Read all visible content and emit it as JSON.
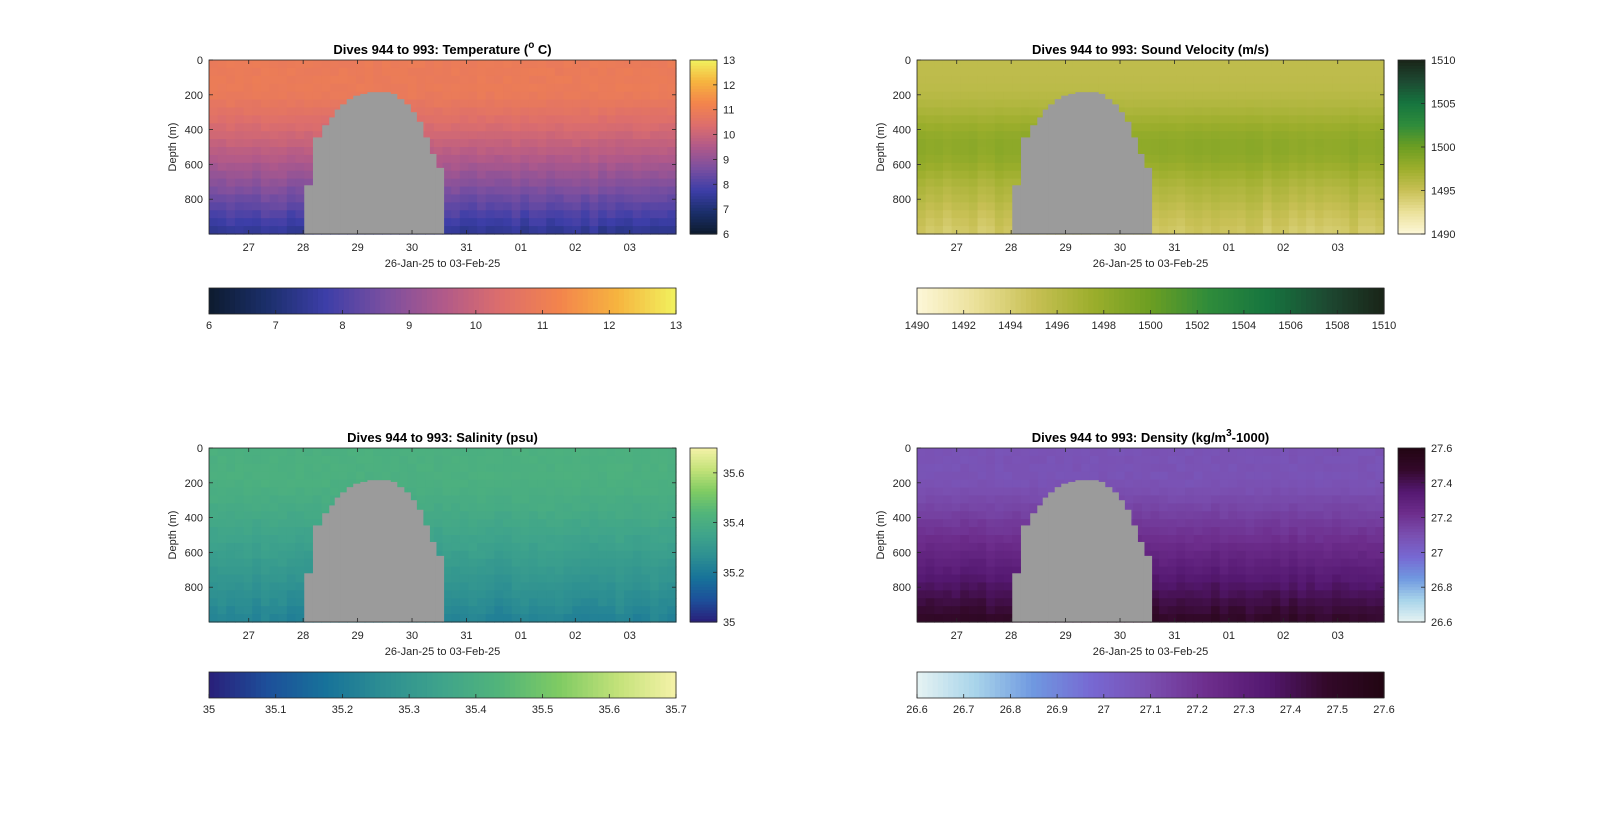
{
  "colors": {
    "mask": "#9b9b9b",
    "axis": "#262626",
    "temperature_map": [
      "#0d1b2e",
      "#1b2f6b",
      "#3d3ea8",
      "#7a4fa0",
      "#b0598a",
      "#dd6e6c",
      "#f3844c",
      "#f6b43f",
      "#f1f25e"
    ],
    "sound_velocity_map": [
      "#fdf7d8",
      "#ebe19a",
      "#c8c055",
      "#9cae2c",
      "#6c9e22",
      "#2f8c3b",
      "#16753f",
      "#1d4a32",
      "#1a2418"
    ],
    "salinity_map": [
      "#2a1f7a",
      "#1d4f9a",
      "#17729a",
      "#2d8f92",
      "#3fa48b",
      "#52b57a",
      "#7fcb63",
      "#c3e279",
      "#f5f2a8"
    ],
    "density_map": [
      "#e6f3f3",
      "#a8d4ea",
      "#6f98e0",
      "#7768d2",
      "#7a4fb0",
      "#6d2d8c",
      "#541870",
      "#33092a",
      "#220512"
    ]
  },
  "chart_data": [
    {
      "type": "heatmap",
      "id": "temperature",
      "title_prefix": "Dives 944 to 993: Temperature (",
      "title_sup": "o",
      "title_suffix": " C)",
      "xlabel": "26-Jan-25 to 03-Feb-25",
      "ylabel": "Depth (m)",
      "x_ticklabels": [
        "27",
        "28",
        "29",
        "30",
        "31",
        "01",
        "02",
        "03"
      ],
      "y_ticklabels": [
        "0",
        "200",
        "400",
        "600",
        "800"
      ],
      "y_ticks": [
        0,
        200,
        400,
        600,
        800
      ],
      "ylim": [
        0,
        1000
      ],
      "y_reversed": true,
      "colorbar_ticks": [
        "6",
        "7",
        "8",
        "9",
        "10",
        "11",
        "12",
        "13"
      ],
      "colorbar_range": [
        6,
        13
      ],
      "surface_value": 10.9,
      "deep_value": 7.4,
      "horizontal_colorbar_ticks": [
        "6",
        "7",
        "8",
        "9",
        "10",
        "11",
        "12",
        "13"
      ]
    },
    {
      "type": "heatmap",
      "id": "sound_velocity",
      "title_prefix": "Dives 944 to 993: Sound Velocity (m/s)",
      "title_sup": "",
      "title_suffix": "",
      "xlabel": "26-Jan-25 to 03-Feb-25",
      "ylabel": "Depth (m)",
      "x_ticklabels": [
        "27",
        "28",
        "29",
        "30",
        "31",
        "01",
        "02",
        "03"
      ],
      "y_ticklabels": [
        "0",
        "200",
        "400",
        "600",
        "800"
      ],
      "y_ticks": [
        0,
        200,
        400,
        600,
        800
      ],
      "ylim": [
        0,
        1000
      ],
      "y_reversed": true,
      "colorbar_ticks": [
        "1490",
        "1495",
        "1500",
        "1505",
        "1510"
      ],
      "colorbar_range": [
        1490,
        1510
      ],
      "surface_value": 1495.5,
      "deep_value": 1496.0,
      "horizontal_colorbar_ticks": [
        "1490",
        "1492",
        "1494",
        "1496",
        "1498",
        "1500",
        "1502",
        "1504",
        "1506",
        "1508",
        "1510"
      ]
    },
    {
      "type": "heatmap",
      "id": "salinity",
      "title_prefix": "Dives 944 to 993: Salinity (psu)",
      "title_sup": "",
      "title_suffix": "",
      "xlabel": "26-Jan-25 to 03-Feb-25",
      "ylabel": "Depth (m)",
      "x_ticklabels": [
        "27",
        "28",
        "29",
        "30",
        "31",
        "01",
        "02",
        "03"
      ],
      "y_ticklabels": [
        "0",
        "200",
        "400",
        "600",
        "800"
      ],
      "y_ticks": [
        0,
        200,
        400,
        600,
        800
      ],
      "ylim": [
        0,
        1000
      ],
      "y_reversed": true,
      "colorbar_ticks": [
        "35",
        "35.2",
        "35.4",
        "35.6"
      ],
      "colorbar_range": [
        35,
        35.7
      ],
      "surface_value": 35.41,
      "deep_value": 35.22,
      "horizontal_colorbar_ticks": [
        "35",
        "35.1",
        "35.2",
        "35.3",
        "35.4",
        "35.5",
        "35.6",
        "35.7"
      ]
    },
    {
      "type": "heatmap",
      "id": "density",
      "title_prefix": "Dives 944 to 993: Density (kg/m",
      "title_sup": "3",
      "title_suffix": "-1000)",
      "xlabel": "26-Jan-25 to 03-Feb-25",
      "ylabel": "Depth (m)",
      "x_ticklabels": [
        "27",
        "28",
        "29",
        "30",
        "31",
        "01",
        "02",
        "03"
      ],
      "y_ticklabels": [
        "0",
        "200",
        "400",
        "600",
        "800"
      ],
      "y_ticks": [
        0,
        200,
        400,
        600,
        800
      ],
      "ylim": [
        0,
        1000
      ],
      "y_reversed": true,
      "colorbar_ticks": [
        "27.6",
        "27.4",
        "27.2",
        "27",
        "26.8",
        "26.6"
      ],
      "colorbar_range": [
        26.6,
        27.6
      ],
      "surface_value": 27.08,
      "deep_value": 27.5,
      "horizontal_colorbar_ticks": [
        "26.6",
        "26.7",
        "26.8",
        "26.9",
        "27",
        "27.1",
        "27.2",
        "27.3",
        "27.4",
        "27.5",
        "27.6"
      ]
    }
  ]
}
